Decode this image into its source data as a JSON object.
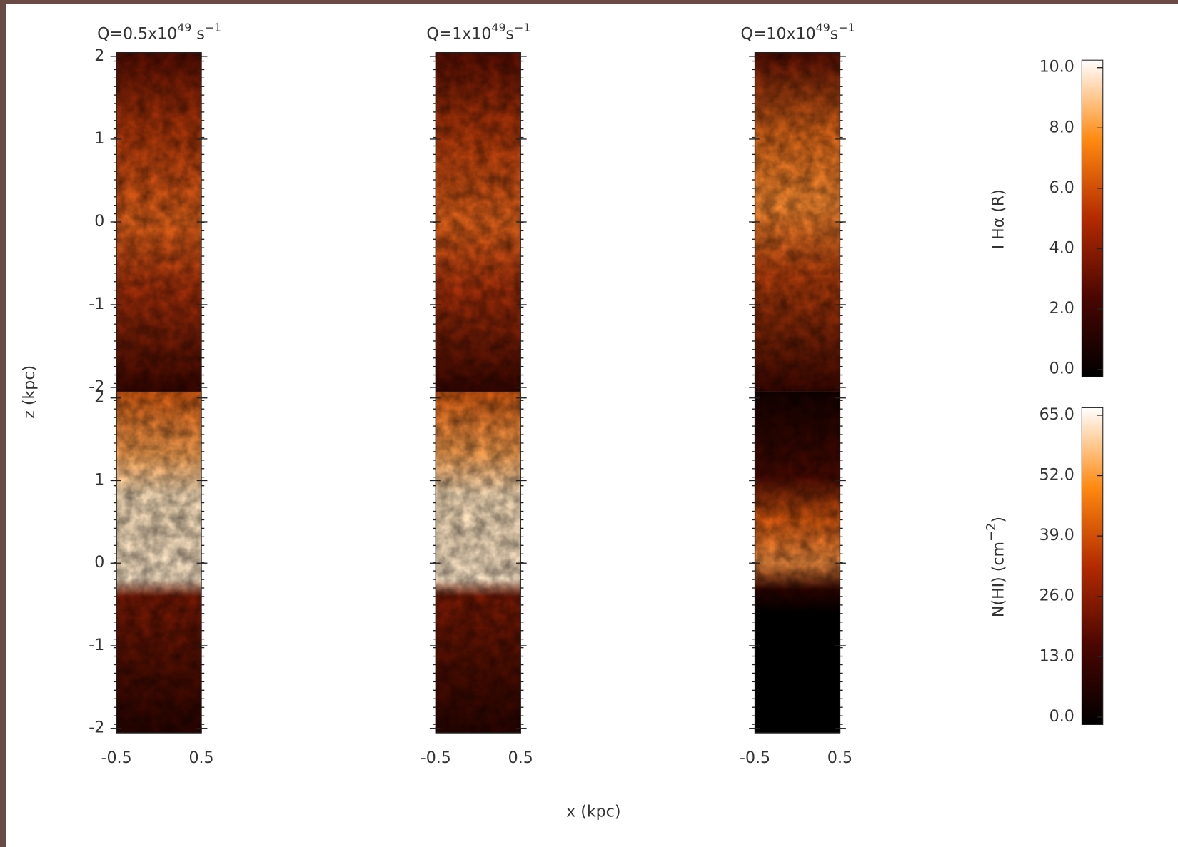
{
  "panels": {
    "titles": [
      {
        "text": "Q=0.5x10",
        "sup": "49",
        "text2": " s",
        "sup2": "−1"
      },
      {
        "text": "Q=1x10",
        "sup": "49",
        "text2": "s",
        "sup2": "−1"
      },
      {
        "text": "Q=10x10",
        "sup": "49",
        "text2": "s",
        "sup2": "−1"
      }
    ],
    "xlim": [
      -0.5,
      0.5
    ],
    "xticks": [
      -0.5,
      0.5
    ],
    "ylim": [
      -2,
      2
    ],
    "yticks": [
      -2,
      -1,
      0,
      1,
      2
    ]
  },
  "xlabel": "x (kpc)",
  "ylabel": "z (kpc)",
  "colorbars": [
    {
      "label": "I Hα (R)",
      "lim": [
        0,
        10
      ],
      "ticks": [
        {
          "value": 0,
          "label": "0.0"
        },
        {
          "value": 2,
          "label": "2.0"
        },
        {
          "value": 4,
          "label": "4.0"
        },
        {
          "value": 6,
          "label": "6.0"
        },
        {
          "value": 8,
          "label": "8.0"
        },
        {
          "value": 10,
          "label": "10.0"
        }
      ]
    },
    {
      "label": "N(HI) (cm",
      "sup": "−2",
      "label2": ")",
      "lim": [
        0,
        65
      ],
      "ticks": [
        {
          "value": 0,
          "label": "0.0"
        },
        {
          "value": 13,
          "label": "13.0"
        },
        {
          "value": 26,
          "label": "26.0"
        },
        {
          "value": 39,
          "label": "39.0"
        },
        {
          "value": 52,
          "label": "52.0"
        },
        {
          "value": 65,
          "label": "65.0"
        }
      ]
    }
  ]
}
